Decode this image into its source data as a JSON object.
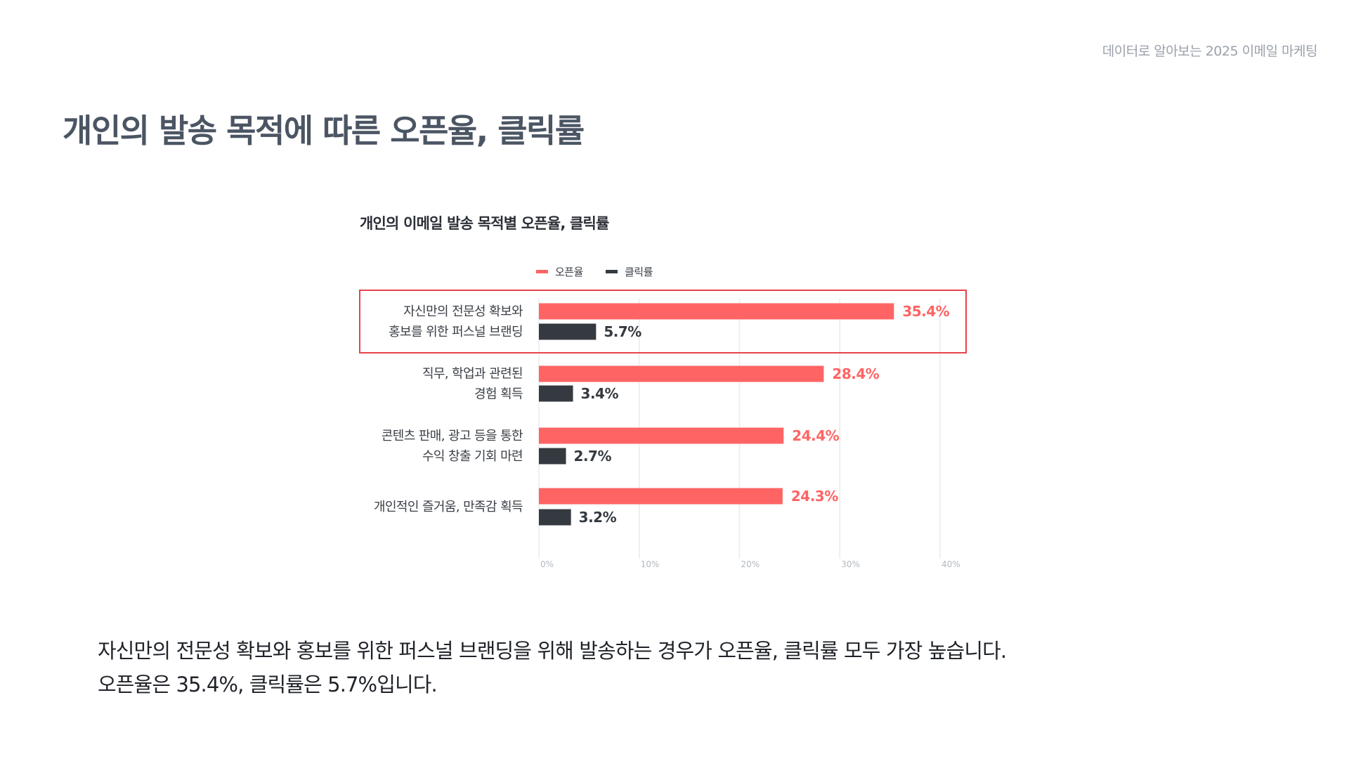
{
  "header": {
    "report_label": "데이터로 알아보는 2025 이메일 마케팅"
  },
  "page": {
    "title": "개인의 발송 목적에 따른 오픈율, 클릭률"
  },
  "description": {
    "line1": "자신만의 전문성 확보와 홍보를 위한 퍼스널 브랜딩을 위해 발송하는 경우가 오픈율, 클릭률 모두 가장 높습니다.",
    "line2": "오픈율은 35.4%, 클릭률은 5.7%입니다."
  },
  "colors": {
    "open_rate": "#ff6464",
    "click_rate": "#343a40",
    "highlight_box": "#e8424a",
    "grid": "#e9ebee"
  },
  "chart_data": {
    "type": "bar",
    "orientation": "horizontal",
    "title": "개인의 이메일 발송 목적별 오픈율, 클릭률",
    "categories": [
      [
        "자신만의 전문성 확보와",
        "홍보를 위한 퍼스널 브랜딩"
      ],
      [
        "직무, 학업과 관련된",
        "경험 획득"
      ],
      [
        "콘텐츠 판매, 광고 등을 통한",
        "수익 창출 기회 마련"
      ],
      [
        "개인적인 즐거움, 만족감 획득"
      ]
    ],
    "series": [
      {
        "name": "오픈율",
        "values": [
          35.4,
          28.4,
          24.4,
          24.3
        ],
        "labels": [
          "35.4%",
          "28.4%",
          "24.4%",
          "24.3%"
        ]
      },
      {
        "name": "클릭률",
        "values": [
          5.7,
          3.4,
          2.7,
          3.2
        ],
        "labels": [
          "5.7%",
          "3.4%",
          "2.7%",
          "3.2%"
        ]
      }
    ],
    "x_ticks": [
      0,
      10,
      20,
      30,
      40
    ],
    "x_tick_labels": [
      "0%",
      "10%",
      "20%",
      "30%",
      "40%"
    ],
    "xlim": [
      0,
      40
    ],
    "grid": true,
    "legend_position": "top-center",
    "highlighted_category_index": 0
  }
}
